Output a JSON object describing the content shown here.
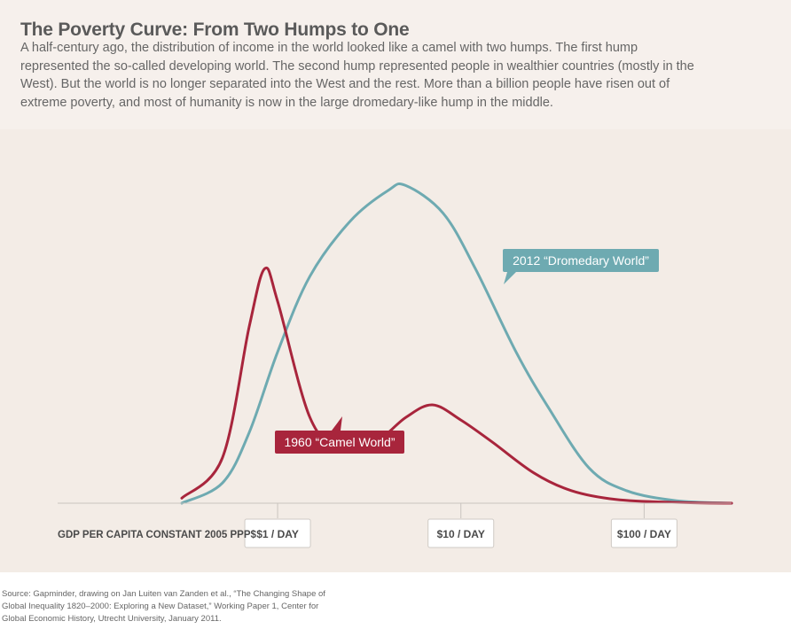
{
  "header": {
    "title": "The Poverty Curve: From Two Humps to One",
    "subtitle": "A half-century ago, the distribution of income in the world looked like a camel with two humps. The first hump represented the so-called developing world. The second hump represented people in wealthier countries (mostly in the West). But the world is no longer separated into the West and the rest. More than a billion people have risen out of extreme poverty, and most of humanity is now in the large dromedary-like hump in the middle."
  },
  "chart_data": {
    "type": "area",
    "xlabel": "GDP PER CAPITA CONSTANT 2005 PPP$",
    "x_scale": "log",
    "xlim_usd_per_day": [
      0.3,
      300
    ],
    "ticks": [
      {
        "value": 1,
        "label": "$1 / DAY"
      },
      {
        "value": 10,
        "label": "$10 / DAY"
      },
      {
        "value": 100,
        "label": "$100 / DAY"
      }
    ],
    "grid": false,
    "series": [
      {
        "name": "1960 “Camel World”",
        "color": "#a8253c",
        "points": [
          [
            0.3,
            0.02
          ],
          [
            0.5,
            0.18
          ],
          [
            0.7,
            0.7
          ],
          [
            0.85,
            0.93
          ],
          [
            1.0,
            0.8
          ],
          [
            1.5,
            0.34
          ],
          [
            2.2,
            0.22
          ],
          [
            3.5,
            0.25
          ],
          [
            5.0,
            0.34
          ],
          [
            7.0,
            0.39
          ],
          [
            10,
            0.33
          ],
          [
            15,
            0.24
          ],
          [
            25,
            0.12
          ],
          [
            40,
            0.05
          ],
          [
            70,
            0.015
          ],
          [
            150,
            0.003
          ],
          [
            300,
            0.0
          ]
        ]
      },
      {
        "name": "2012 “Dromedary World”",
        "color": "#6eaab1",
        "points": [
          [
            0.3,
            0.0
          ],
          [
            0.5,
            0.08
          ],
          [
            0.7,
            0.28
          ],
          [
            1.0,
            0.6
          ],
          [
            1.5,
            0.9
          ],
          [
            2.5,
            1.12
          ],
          [
            4.0,
            1.24
          ],
          [
            5.0,
            1.26
          ],
          [
            8.0,
            1.15
          ],
          [
            12,
            0.93
          ],
          [
            20,
            0.6
          ],
          [
            30,
            0.38
          ],
          [
            50,
            0.14
          ],
          [
            80,
            0.05
          ],
          [
            150,
            0.01
          ],
          [
            300,
            0.0
          ]
        ]
      }
    ],
    "ylim": [
      0,
      1.3
    ]
  },
  "source": "Source: Gapminder, drawing on Jan Luiten van Zanden et al., “The Changing Shape of Global Inequality 1820–2000: Exploring a New Dataset,” Working Paper 1, Center for Global Economic History, Utrecht University, January 2011."
}
